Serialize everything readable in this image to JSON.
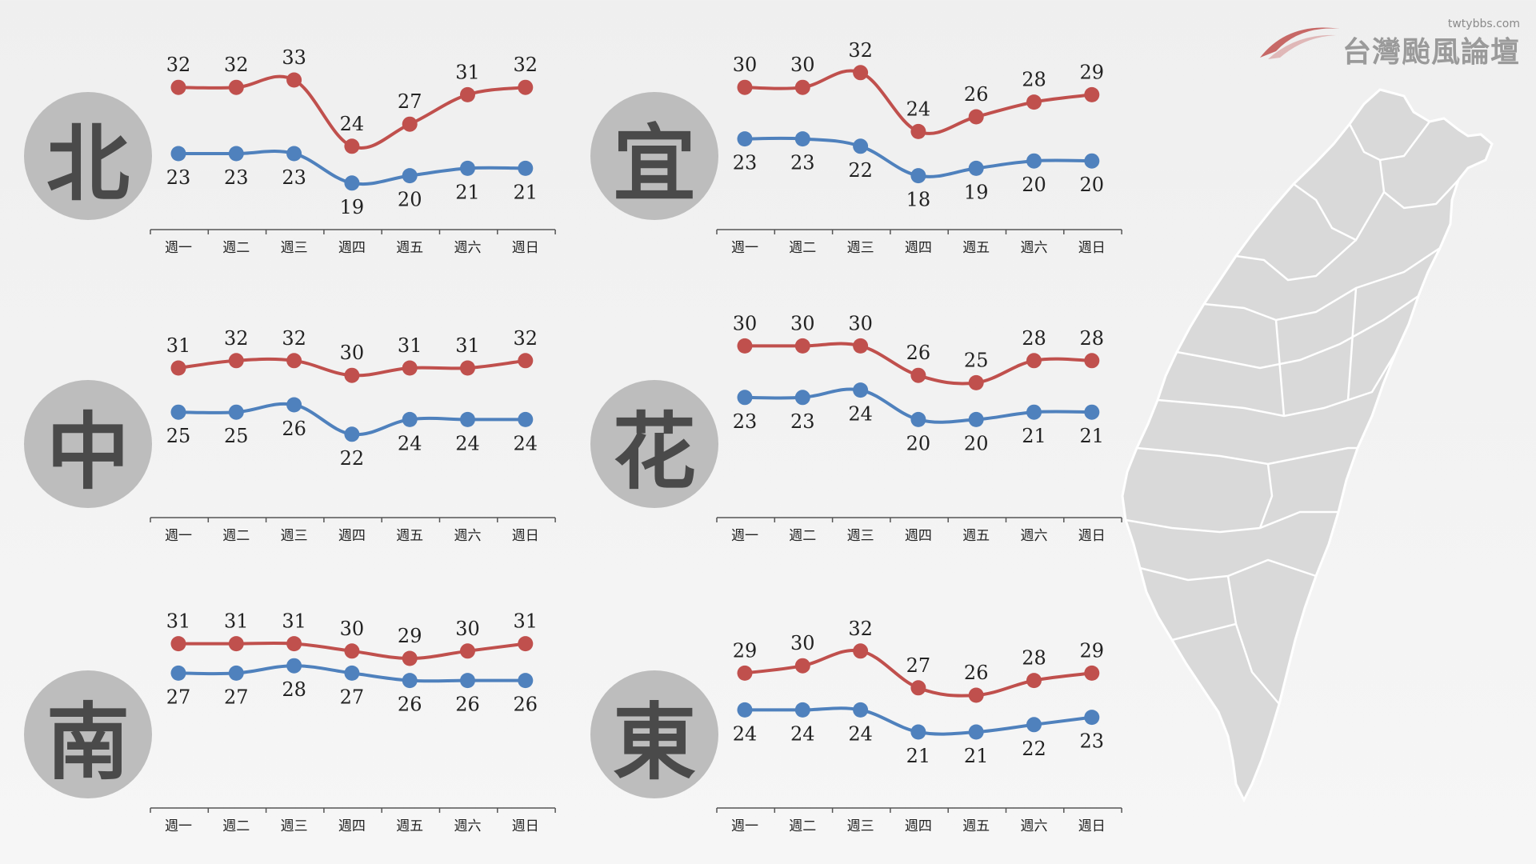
{
  "logo": {
    "site": "twtybbs.com",
    "brand": "台灣颱風論壇"
  },
  "colors": {
    "high": "#c0504d",
    "low": "#4f81bd",
    "axis": "#555555"
  },
  "chart_data": [
    {
      "type": "line",
      "region": "北",
      "categories": [
        "週一",
        "週二",
        "週三",
        "週四",
        "週五",
        "週六",
        "週日"
      ],
      "series": [
        {
          "values": [
            32,
            32,
            33,
            24,
            27,
            31,
            32
          ]
        },
        {
          "values": [
            23,
            23,
            23,
            19,
            20,
            21,
            21
          ]
        }
      ]
    },
    {
      "type": "line",
      "region": "宜",
      "categories": [
        "週一",
        "週二",
        "週三",
        "週四",
        "週五",
        "週六",
        "週日"
      ],
      "series": [
        {
          "values": [
            30,
            30,
            32,
            24,
            26,
            28,
            29
          ]
        },
        {
          "values": [
            23,
            23,
            22,
            18,
            19,
            20,
            20
          ]
        }
      ]
    },
    {
      "type": "line",
      "region": "中",
      "categories": [
        "週一",
        "週二",
        "週三",
        "週四",
        "週五",
        "週六",
        "週日"
      ],
      "series": [
        {
          "values": [
            31,
            32,
            32,
            30,
            31,
            31,
            32
          ]
        },
        {
          "values": [
            25,
            25,
            26,
            22,
            24,
            24,
            24
          ]
        }
      ]
    },
    {
      "type": "line",
      "region": "花",
      "categories": [
        "週一",
        "週二",
        "週三",
        "週四",
        "週五",
        "週六",
        "週日"
      ],
      "series": [
        {
          "values": [
            30,
            30,
            30,
            26,
            25,
            28,
            28
          ]
        },
        {
          "values": [
            23,
            23,
            24,
            20,
            20,
            21,
            21
          ]
        }
      ]
    },
    {
      "type": "line",
      "region": "南",
      "categories": [
        "週一",
        "週二",
        "週三",
        "週四",
        "週五",
        "週六",
        "週日"
      ],
      "series": [
        {
          "values": [
            31,
            31,
            31,
            30,
            29,
            30,
            31
          ]
        },
        {
          "values": [
            27,
            27,
            28,
            27,
            26,
            26,
            26
          ]
        }
      ]
    },
    {
      "type": "line",
      "region": "東",
      "categories": [
        "週一",
        "週二",
        "週三",
        "週四",
        "週五",
        "週六",
        "週日"
      ],
      "series": [
        {
          "values": [
            29,
            30,
            32,
            27,
            26,
            28,
            29
          ]
        },
        {
          "values": [
            24,
            24,
            24,
            21,
            21,
            22,
            23
          ]
        }
      ]
    }
  ]
}
